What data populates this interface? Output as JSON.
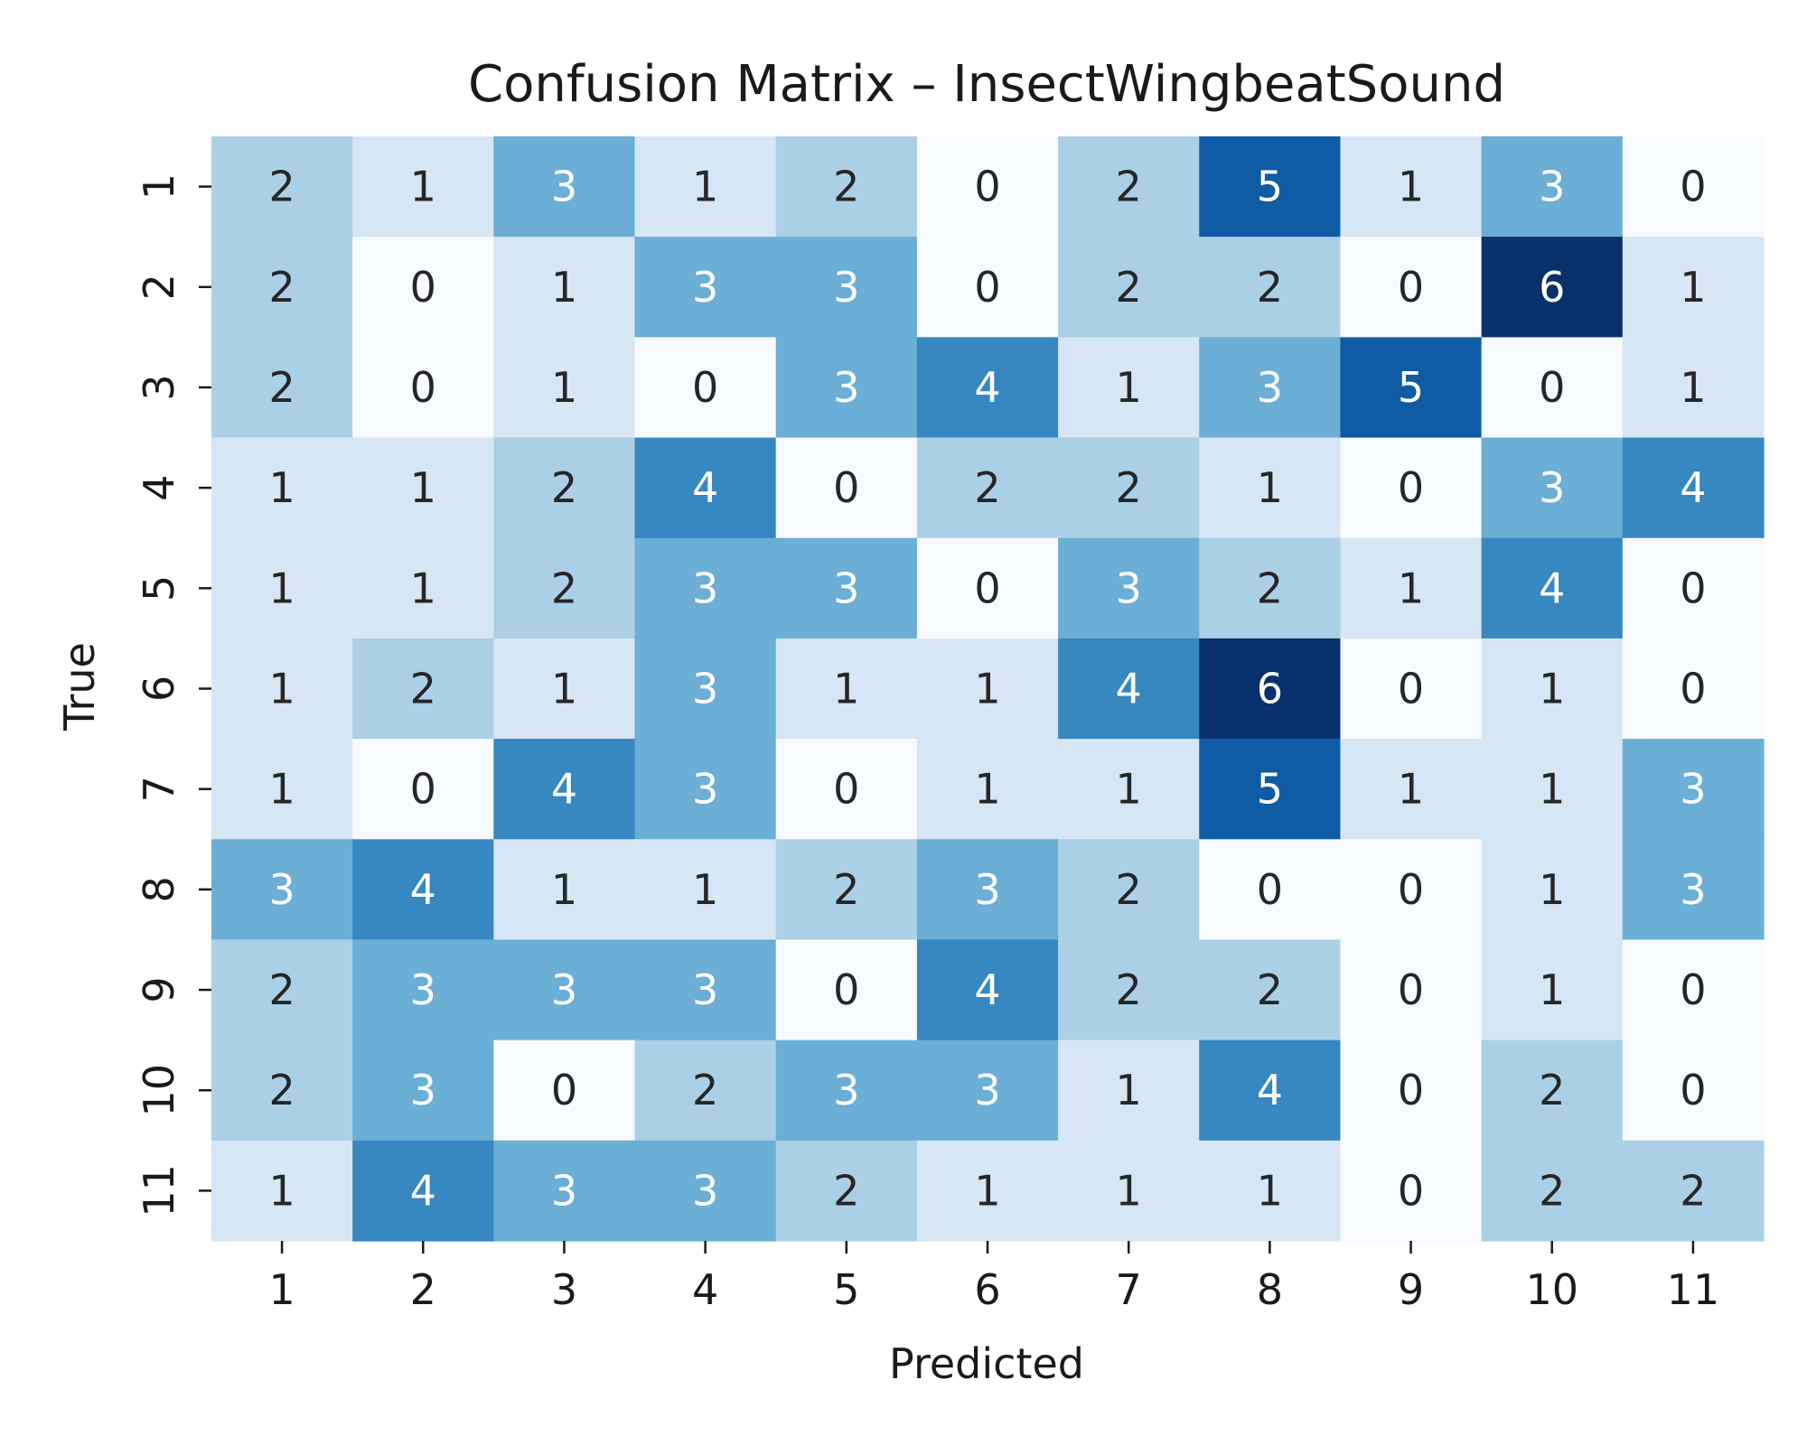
{
  "chart_data": {
    "type": "heatmap",
    "title": "Confusion Matrix – InsectWingbeatSound",
    "xlabel": "Predicted",
    "ylabel": "True",
    "x_categories": [
      "1",
      "2",
      "3",
      "4",
      "5",
      "6",
      "7",
      "8",
      "9",
      "10",
      "11"
    ],
    "y_categories": [
      "1",
      "2",
      "3",
      "4",
      "5",
      "6",
      "7",
      "8",
      "9",
      "10",
      "11"
    ],
    "values": [
      [
        2,
        1,
        3,
        1,
        2,
        0,
        2,
        5,
        1,
        3,
        0
      ],
      [
        2,
        0,
        1,
        3,
        3,
        0,
        2,
        2,
        0,
        6,
        1
      ],
      [
        2,
        0,
        1,
        0,
        3,
        4,
        1,
        3,
        5,
        0,
        1
      ],
      [
        1,
        1,
        2,
        4,
        0,
        2,
        2,
        1,
        0,
        3,
        4
      ],
      [
        1,
        1,
        2,
        3,
        3,
        0,
        3,
        2,
        1,
        4,
        0
      ],
      [
        1,
        2,
        1,
        3,
        1,
        1,
        4,
        6,
        0,
        1,
        0
      ],
      [
        1,
        0,
        4,
        3,
        0,
        1,
        1,
        5,
        1,
        1,
        3
      ],
      [
        3,
        4,
        1,
        1,
        2,
        3,
        2,
        0,
        0,
        1,
        3
      ],
      [
        2,
        3,
        3,
        3,
        0,
        4,
        2,
        2,
        0,
        1,
        0
      ],
      [
        2,
        3,
        0,
        2,
        3,
        3,
        1,
        4,
        0,
        2,
        0
      ],
      [
        1,
        4,
        3,
        3,
        2,
        1,
        1,
        1,
        0,
        2,
        2
      ]
    ],
    "colormap": "Blues",
    "value_range": [
      0,
      6
    ],
    "annotated": true,
    "colorbar": false,
    "grid": false
  }
}
